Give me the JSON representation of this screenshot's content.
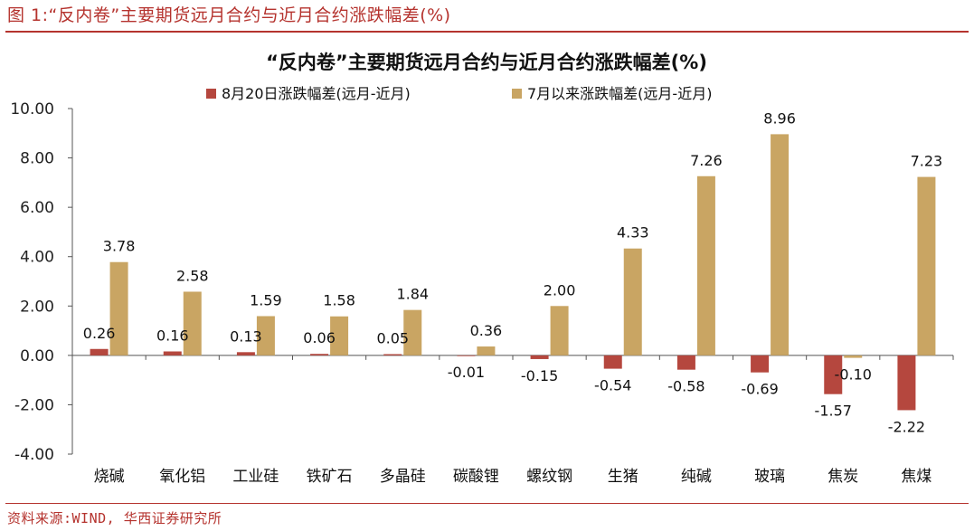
{
  "figure_header": "图 1:“反内卷”主要期货远月合约与近月合约涨跌幅差(%)",
  "source": "资料来源:WIND, 华西证券研究所",
  "colors": {
    "brand": "#b5332e",
    "series1": "#b5473e",
    "series2": "#c9a563"
  },
  "chart_data": {
    "type": "bar",
    "title": "“反内卷”主要期货远月合约与近月合约涨跌幅差(%)",
    "categories": [
      "烧碱",
      "氧化铝",
      "工业硅",
      "铁矿石",
      "多晶硅",
      "碳酸锂",
      "螺纹钢",
      "生猪",
      "纯碱",
      "玻璃",
      "焦炭",
      "焦煤"
    ],
    "series": [
      {
        "name": "8月20日涨跌幅差(远月-近月)",
        "values": [
          0.26,
          0.16,
          0.13,
          0.06,
          0.05,
          -0.01,
          -0.15,
          -0.54,
          -0.58,
          -0.69,
          -1.57,
          -2.22
        ]
      },
      {
        "name": "7月以来涨跌幅差(远月-近月)",
        "values": [
          3.78,
          2.58,
          1.59,
          1.58,
          1.84,
          0.36,
          2.0,
          4.33,
          7.26,
          8.96,
          -0.1,
          7.23
        ]
      }
    ],
    "ylim": [
      -4,
      10
    ],
    "yticks": [
      "10.00",
      "8.00",
      "6.00",
      "4.00",
      "2.00",
      "0.00",
      "-2.00",
      "-4.00"
    ],
    "legend_position": "top",
    "grid": false
  }
}
